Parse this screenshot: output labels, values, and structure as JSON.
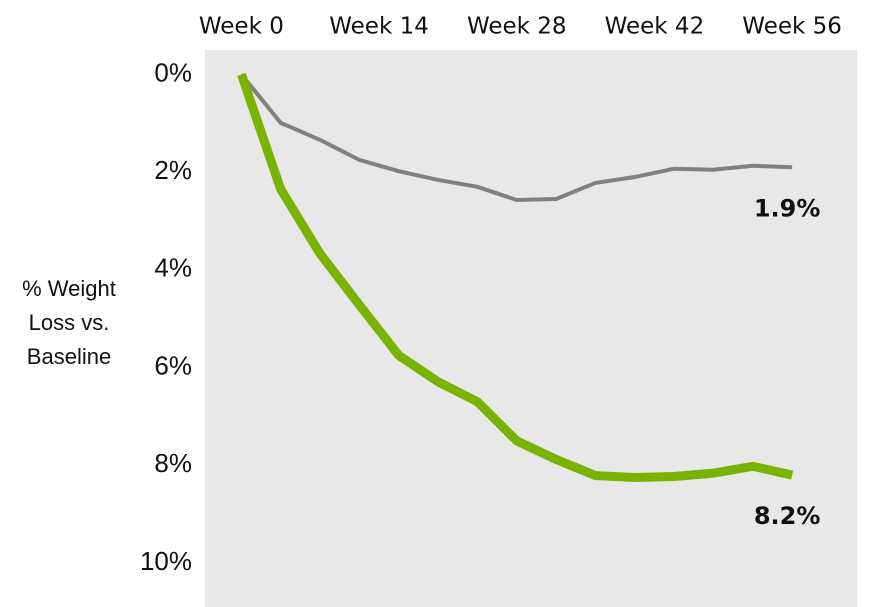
{
  "chart_data": {
    "type": "line",
    "y_label": "% Weight Loss vs. Baseline",
    "x": [
      0,
      4,
      8,
      12,
      16,
      20,
      24,
      28,
      32,
      36,
      40,
      44,
      48,
      52,
      56
    ],
    "xlim": [
      -3.7,
      62.6
    ],
    "xticks": [
      {
        "value": 0,
        "label": "Week 0"
      },
      {
        "value": 14,
        "label": "Week 14"
      },
      {
        "value": 28,
        "label": "Week 28"
      },
      {
        "value": 42,
        "label": "Week 42"
      },
      {
        "value": 56,
        "label": "Week 56"
      }
    ],
    "ylim": [
      -0.5,
      10.9
    ],
    "y_inverted": true,
    "yticks": [
      {
        "value": 0,
        "label": "0%"
      },
      {
        "value": 2,
        "label": "2%"
      },
      {
        "value": 4,
        "label": "4%"
      },
      {
        "value": 6,
        "label": "6%"
      },
      {
        "value": 8,
        "label": "8%"
      },
      {
        "value": 10,
        "label": "10%"
      }
    ],
    "background": "#e8e8e8",
    "series": [
      {
        "color": "#808080",
        "width": 4,
        "values": [
          0,
          0.99,
          1.34,
          1.75,
          1.98,
          2.16,
          2.3,
          2.57,
          2.55,
          2.22,
          2.1,
          1.93,
          1.95,
          1.87,
          1.9
        ],
        "value_labels": [
          null,
          null,
          null,
          null,
          null,
          null,
          null,
          null,
          null,
          null,
          null,
          null,
          null,
          null,
          "1.9%"
        ]
      },
      {
        "color": "#77b300",
        "width": 9,
        "values": [
          0,
          2.35,
          3.67,
          4.72,
          5.75,
          6.29,
          6.7,
          7.5,
          7.88,
          8.21,
          8.25,
          8.23,
          8.16,
          8.02,
          8.2
        ],
        "value_labels": [
          null,
          null,
          null,
          null,
          null,
          null,
          null,
          null,
          null,
          null,
          null,
          null,
          null,
          null,
          "8.2%"
        ]
      }
    ]
  }
}
